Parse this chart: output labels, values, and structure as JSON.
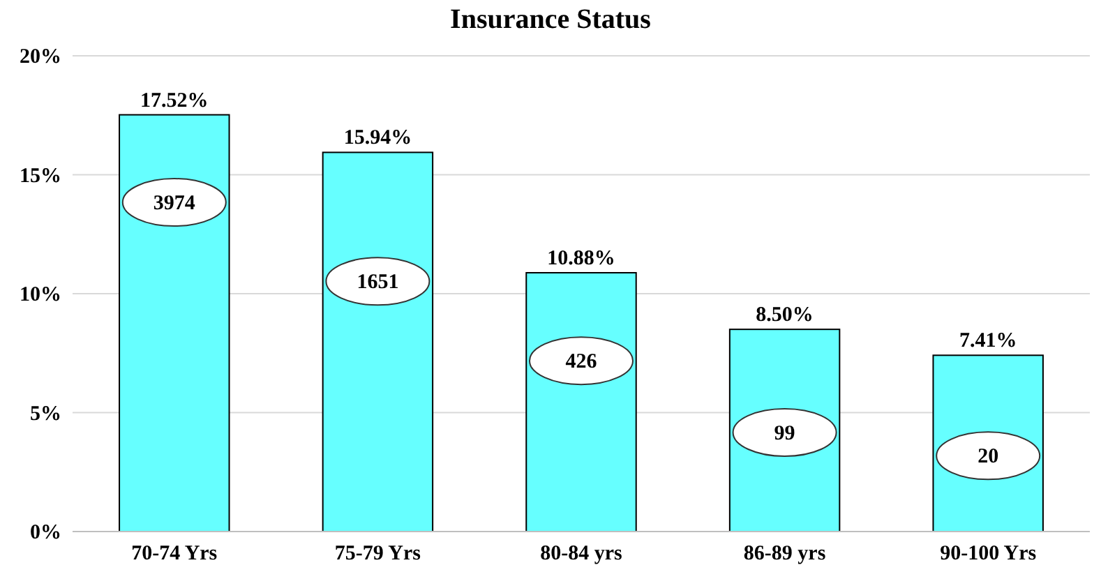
{
  "chart_data": {
    "type": "bar",
    "title": "Insurance Status",
    "categories": [
      "70-74 Yrs",
      "75-79 Yrs",
      "80-84 yrs",
      "86-89 yrs",
      "90-100 Yrs"
    ],
    "values": [
      17.52,
      15.94,
      10.88,
      8.5,
      7.41
    ],
    "value_labels": [
      "17.52%",
      "15.94%",
      "10.88%",
      "8.50%",
      "7.41%"
    ],
    "color": "#66ffff",
    "ylim": [
      0,
      20
    ],
    "yticks": [
      {
        "value": 0,
        "label": "0%"
      },
      {
        "value": 5,
        "label": "5%"
      },
      {
        "value": 10,
        "label": "10%"
      },
      {
        "value": 15,
        "label": "15%"
      },
      {
        "value": 20,
        "label": "20%"
      }
    ],
    "grid": "y",
    "annotations": [
      "3974",
      "1651",
      "426",
      "99",
      "20"
    ]
  }
}
